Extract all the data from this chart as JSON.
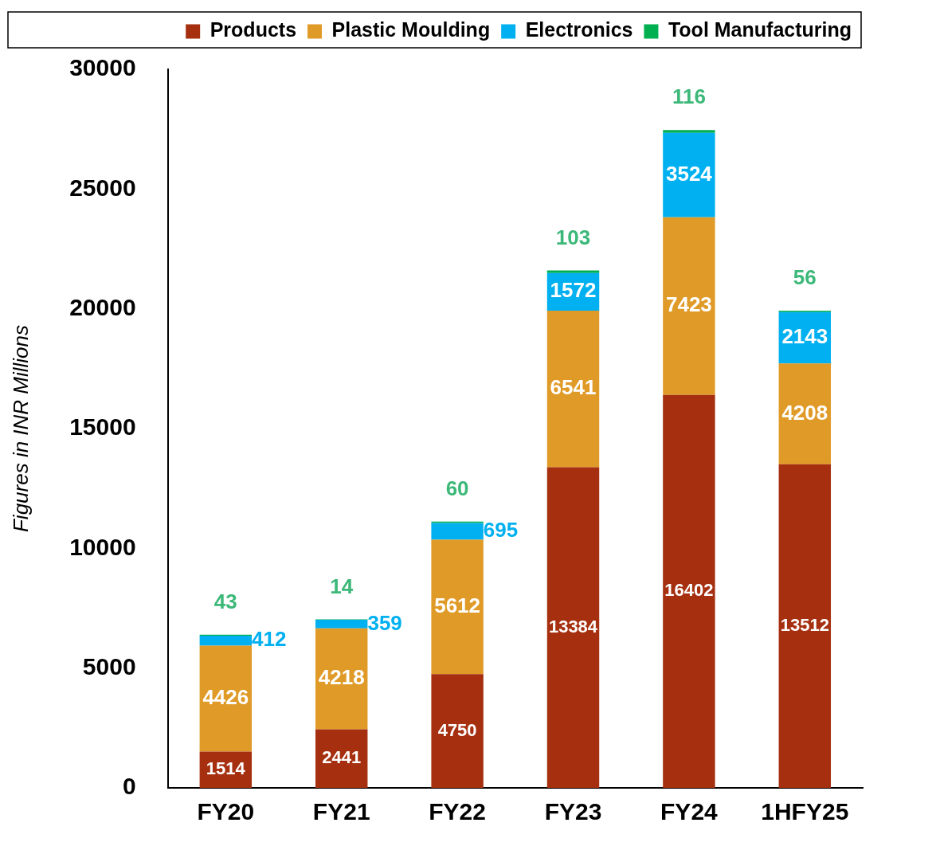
{
  "chart_data": {
    "type": "bar",
    "stacked": true,
    "ylabel": "Figures in INR Millions",
    "categories": [
      "FY20",
      "FY21",
      "FY22",
      "FY23",
      "FY24",
      "1HFY25"
    ],
    "series": [
      {
        "name": "Products",
        "color": "#a52f0f",
        "values": [
          1514,
          2441,
          4750,
          13384,
          16402,
          13512
        ]
      },
      {
        "name": "Plastic Moulding",
        "color": "#e09a27",
        "values": [
          4426,
          4218,
          5612,
          6541,
          7423,
          4208
        ]
      },
      {
        "name": "Electronics",
        "color": "#00b0f0",
        "values": [
          412,
          359,
          695,
          1572,
          3524,
          2143
        ]
      },
      {
        "name": "Tool Manufacturing",
        "color": "#00b050",
        "values": [
          43,
          14,
          60,
          103,
          116,
          56
        ]
      }
    ],
    "ylim": [
      0,
      30000
    ],
    "yticks": [
      0,
      5000,
      10000,
      15000,
      20000,
      25000,
      30000
    ],
    "grid": false,
    "legend": "top right",
    "data_labels": true
  }
}
